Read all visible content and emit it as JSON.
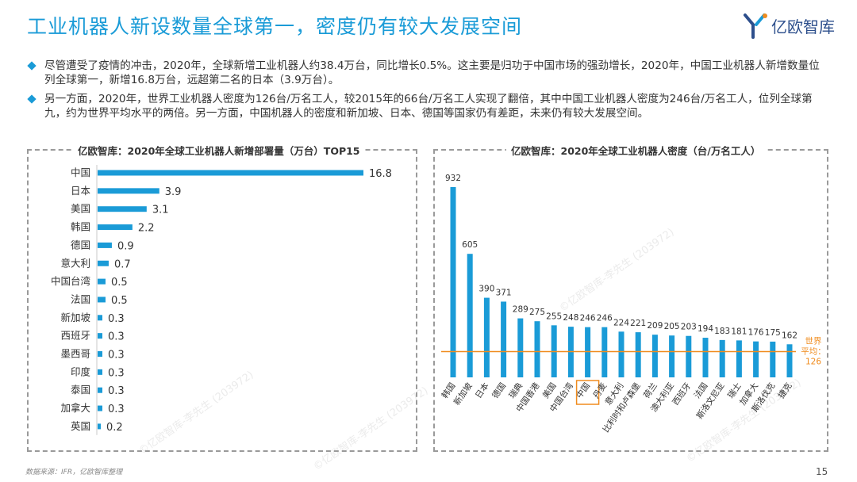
{
  "header": {
    "title": "工业机器人新设数量全球第一，密度仍有较大发展空间",
    "logo_text": "亿欧智库"
  },
  "bullets": [
    "尽管遭受了疫情的冲击，2020年，全球新增工业机器人约38.4万台，同比增长0.5%。这主要是归功于中国市场的强劲增长，2020年，中国工业机器人新增数量位列全球第一，新增16.8万台，远超第二名的日本（3.9万台）。",
    "另一方面，2020年，世界工业机器人密度为126台/万名工人，较2015年的66台/万名工人实现了翻倍，其中中国工业机器人密度为246台/万名工人，位列全球第九，约为世界平均水平的两倍。另一方面，中国机器人的密度和新加坡、日本、德国等国家仍有差距，未来仍有较大发展空间。"
  ],
  "watermark": "©亿欧智库-李先生 (203972)",
  "footer": {
    "source": "数据来源：IFR，亿欧智库整理",
    "page": "15"
  },
  "colors": {
    "accent": "#1a9bd7",
    "highlight": "#f08c1e",
    "border": "#9a9a9a"
  },
  "chart_data": [
    {
      "type": "bar",
      "orientation": "horizontal",
      "title": "亿欧智库：2020年全球工业机器人新增部署量（万台）TOP15",
      "categories": [
        "中国",
        "日本",
        "美国",
        "韩国",
        "德国",
        "意大利",
        "中国台湾",
        "法国",
        "新加坡",
        "西班牙",
        "墨西哥",
        "印度",
        "泰国",
        "加拿大",
        "英国"
      ],
      "values": [
        16.8,
        3.9,
        3.1,
        2.2,
        0.9,
        0.7,
        0.5,
        0.5,
        0.3,
        0.3,
        0.3,
        0.3,
        0.3,
        0.3,
        0.2
      ],
      "xlim": [
        0,
        16.8
      ]
    },
    {
      "type": "bar",
      "orientation": "vertical",
      "title": "亿欧智库：2020年全球工业机器人密度（台/万名工人）",
      "categories": [
        "韩国",
        "新加坡",
        "日本",
        "德国",
        "瑞典",
        "中国香港",
        "美国",
        "中国台湾",
        "中国",
        "丹麦",
        "意大利",
        "比利时和卢森堡",
        "荷兰",
        "澳大利亚",
        "西班牙",
        "法国",
        "斯洛文尼亚",
        "瑞士",
        "加拿大",
        "斯洛伐克",
        "捷克"
      ],
      "values": [
        932,
        605,
        390,
        371,
        289,
        275,
        255,
        248,
        246,
        246,
        224,
        221,
        209,
        205,
        203,
        194,
        183,
        181,
        176,
        175,
        162
      ],
      "highlight_category": "中国",
      "ylim": [
        0,
        932
      ],
      "reference_line": {
        "label": "世界平均：126",
        "label_line1": "世界",
        "label_line2": "平均：",
        "value": 126
      }
    }
  ]
}
